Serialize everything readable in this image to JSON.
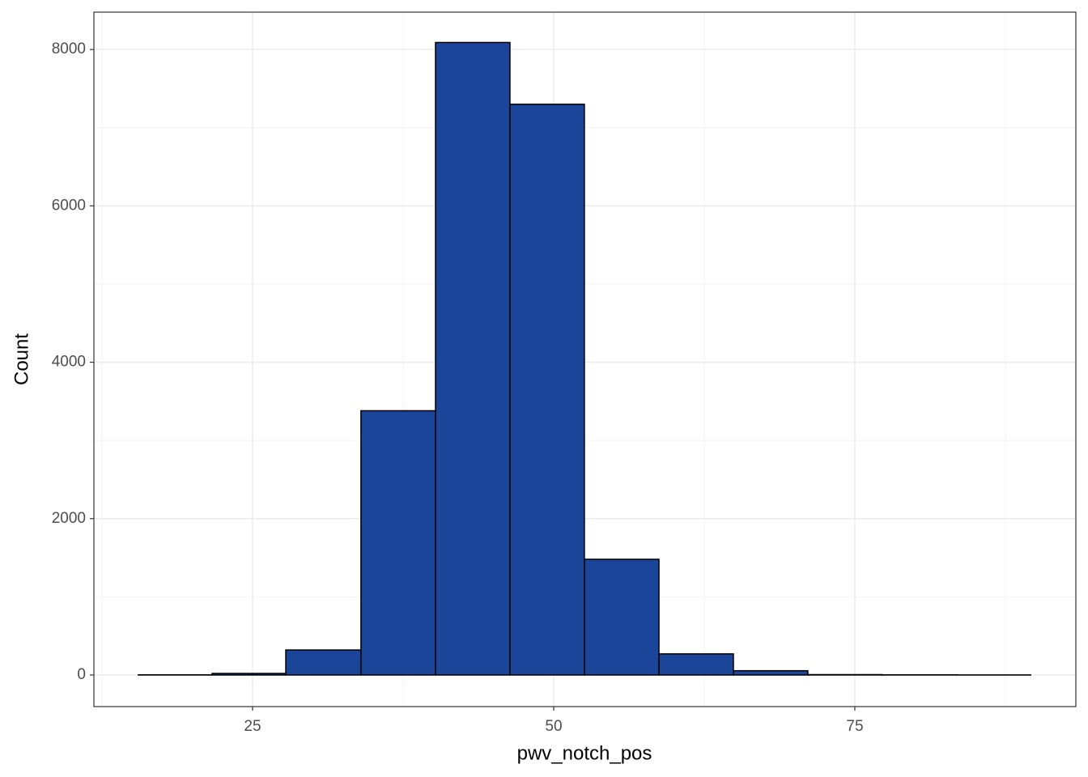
{
  "chart_data": {
    "type": "histogram",
    "x_label": "pwv_notch_pos",
    "y_label": "Count",
    "bins": [
      15.52,
      21.64,
      27.76,
      34.0,
      40.19,
      46.37,
      52.55,
      58.74,
      64.92,
      71.1,
      77.28,
      83.47,
      89.6
    ],
    "values": [
      2,
      20,
      320,
      3380,
      8090,
      7300,
      1480,
      270,
      55,
      5,
      2,
      1
    ],
    "color": "#1a4599",
    "edge_color": "#000000",
    "xlim": [
      11.83,
      93.35
    ],
    "xticks": [
      25,
      50,
      75
    ],
    "ylim": [
      -404,
      8478
    ],
    "yticks": [
      0,
      2000,
      4000,
      6000,
      8000
    ],
    "grid": true
  }
}
